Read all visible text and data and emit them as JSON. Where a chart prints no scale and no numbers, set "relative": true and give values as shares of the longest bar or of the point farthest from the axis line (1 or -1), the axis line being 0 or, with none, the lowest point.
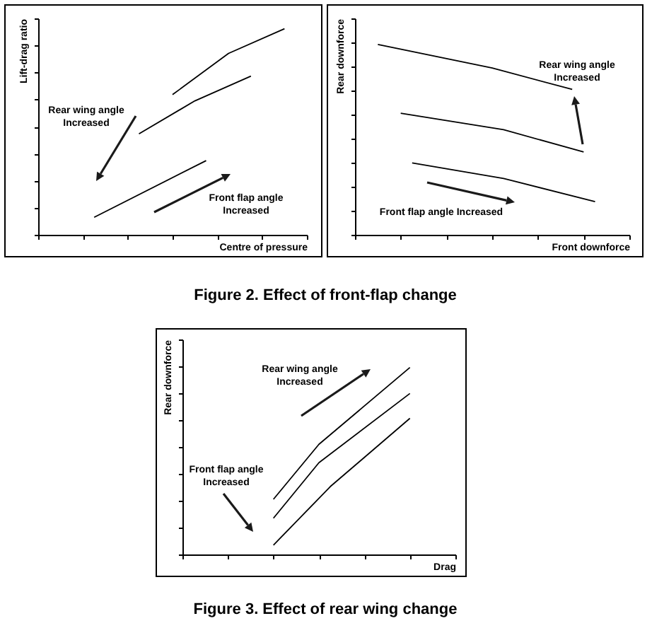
{
  "chart_data": [
    {
      "type": "line",
      "relative": true,
      "xlabel": "Centre of pressure",
      "ylabel": "Lift-drag ratio",
      "categories": [
        null,
        null,
        null,
        null,
        null,
        null,
        null,
        null,
        null,
        null,
        null,
        null,
        null,
        null,
        null,
        null,
        null,
        null,
        null,
        null,
        null,
        null,
        null,
        null,
        null
      ],
      "series": [
        {
          "color": "#000000",
          "values": [
            null,
            null,
            null,
            null,
            null,
            null,
            null,
            null,
            null,
            null,
            null,
            null,
            0.68,
            null,
            null,
            null,
            null,
            0.88,
            null,
            null,
            null,
            null,
            1,
            null,
            null
          ]
        },
        {
          "color": "#000000",
          "values": [
            null,
            null,
            null,
            null,
            null,
            null,
            null,
            null,
            null,
            0.49,
            null,
            null,
            null,
            null,
            0.65,
            null,
            null,
            null,
            null,
            0.77,
            null,
            null,
            null,
            null,
            null
          ]
        },
        {
          "color": "#000000",
          "values": [
            null,
            null,
            null,
            null,
            null,
            0.085,
            null,
            null,
            null,
            null,
            null,
            null,
            null,
            null,
            null,
            0.36,
            null,
            null,
            null,
            null,
            null,
            null,
            null,
            null,
            null
          ]
        }
      ],
      "annotations": [
        "Rear wing angle Increased",
        "Front flap angle Increased",
        "Figure 2. Effect of front-flap change"
      ]
    },
    {
      "type": "line",
      "relative": true,
      "xlabel": "Front downforce",
      "ylabel": "Rear downforce",
      "categories": [
        null,
        null,
        null,
        null,
        null,
        null,
        null,
        null,
        null,
        null,
        null,
        null,
        null,
        null,
        null,
        null,
        null,
        null,
        null,
        null,
        null,
        null,
        null,
        null,
        null
      ],
      "series": [
        {
          "color": "#000000",
          "values": [
            null,
            null,
            1,
            null,
            null,
            null,
            null,
            null,
            null,
            null,
            null,
            null,
            0.876,
            null,
            null,
            null,
            null,
            null,
            null,
            0.764,
            null,
            null,
            null,
            null,
            null
          ]
        },
        {
          "color": "#000000",
          "values": [
            null,
            null,
            null,
            null,
            0.639,
            null,
            null,
            null,
            null,
            null,
            null,
            null,
            null,
            0.552,
            null,
            null,
            null,
            null,
            null,
            null,
            0.435,
            null,
            null,
            null,
            null
          ]
        },
        {
          "color": "#000000",
          "values": [
            null,
            null,
            null,
            null,
            null,
            0.378,
            null,
            null,
            null,
            null,
            null,
            null,
            null,
            0.296,
            null,
            null,
            null,
            null,
            null,
            null,
            null,
            0.174,
            null,
            null,
            null
          ]
        }
      ],
      "annotations": [
        "Rear wing angle Increased",
        "Front flap angle Increased"
      ]
    },
    {
      "type": "line",
      "relative": true,
      "xlabel": "Drag",
      "ylabel": "Rear downforce",
      "categories": [
        null,
        null,
        null,
        null,
        null,
        null,
        null,
        null,
        null,
        null,
        null,
        null,
        null,
        null,
        null,
        null,
        null,
        null,
        null,
        null,
        null,
        null,
        null,
        null,
        null
      ],
      "series": [
        {
          "color": "#000000",
          "values": [
            null,
            null,
            null,
            null,
            null,
            null,
            null,
            null,
            0.295,
            null,
            null,
            null,
            0.589,
            null,
            null,
            null,
            null,
            null,
            null,
            null,
            1,
            null,
            null,
            null,
            null
          ]
        },
        {
          "color": "#000000",
          "values": [
            null,
            null,
            null,
            null,
            null,
            null,
            null,
            null,
            0.194,
            null,
            null,
            null,
            0.491,
            null,
            null,
            null,
            null,
            null,
            null,
            null,
            0.861,
            null,
            null,
            null,
            null
          ]
        },
        {
          "color": "#000000",
          "values": [
            null,
            null,
            null,
            null,
            null,
            null,
            null,
            null,
            0.05,
            null,
            null,
            null,
            null,
            0.363,
            null,
            null,
            null,
            null,
            null,
            null,
            0.728,
            null,
            null,
            null,
            null
          ]
        }
      ],
      "annotations": [
        "Rear wing angle Increased",
        "Front flap angle Increased",
        "Figure 3. Effect of rear wing change"
      ]
    }
  ]
}
